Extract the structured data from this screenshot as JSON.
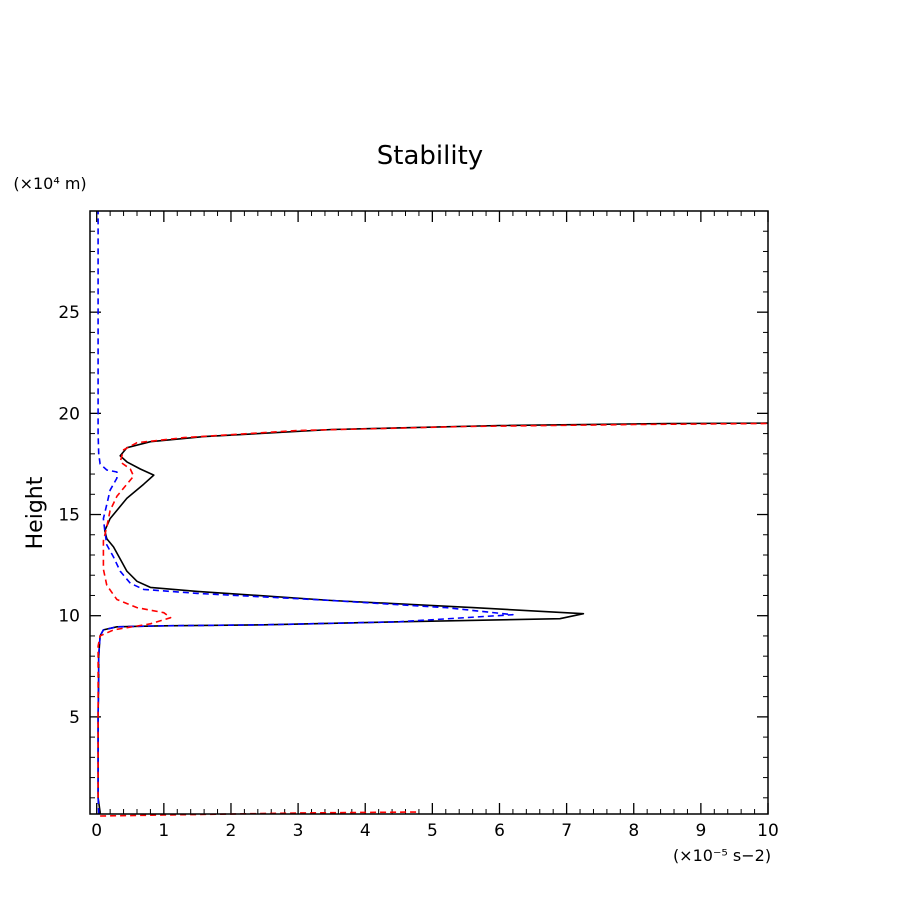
{
  "chart_data": {
    "type": "line",
    "title": "Stability",
    "xlabel": "(×10⁻⁵ s−2)",
    "ylabel": "Height",
    "y_unit_label": "(×10⁴ m)",
    "xlim": [
      -0.1,
      10
    ],
    "ylim": [
      0.2,
      30
    ],
    "x_major_ticks": [
      0,
      1,
      2,
      3,
      4,
      5,
      6,
      7,
      8,
      9,
      10
    ],
    "y_major_ticks": [
      5,
      10,
      15,
      20,
      25
    ],
    "grid": false,
    "legend": "none",
    "series": [
      {
        "color": "#000000",
        "dash": "solid",
        "points": [
          [
            0.05,
            0.2
          ],
          [
            0.05,
            0.3
          ],
          [
            0.02,
            1
          ],
          [
            0.02,
            3
          ],
          [
            0.02,
            5
          ],
          [
            0.03,
            7
          ],
          [
            0.03,
            8
          ],
          [
            0.05,
            9
          ],
          [
            0.1,
            9.3
          ],
          [
            0.3,
            9.45
          ],
          [
            1.0,
            9.5
          ],
          [
            2.5,
            9.55
          ],
          [
            4.5,
            9.7
          ],
          [
            6.9,
            9.85
          ],
          [
            7.25,
            10.1
          ],
          [
            5.6,
            10.4
          ],
          [
            3.5,
            10.75
          ],
          [
            1.5,
            11.2
          ],
          [
            0.8,
            11.4
          ],
          [
            0.6,
            11.7
          ],
          [
            0.45,
            12.2
          ],
          [
            0.35,
            12.8
          ],
          [
            0.25,
            13.4
          ],
          [
            0.15,
            13.8
          ],
          [
            0.12,
            14.2
          ],
          [
            0.2,
            14.8
          ],
          [
            0.35,
            15.4
          ],
          [
            0.45,
            15.8
          ],
          [
            0.7,
            16.5
          ],
          [
            0.85,
            16.95
          ],
          [
            0.65,
            17.25
          ],
          [
            0.45,
            17.6
          ],
          [
            0.35,
            17.9
          ],
          [
            0.45,
            18.3
          ],
          [
            0.8,
            18.6
          ],
          [
            1.6,
            18.85
          ],
          [
            3.5,
            19.2
          ],
          [
            6.0,
            19.4
          ],
          [
            8.5,
            19.5
          ],
          [
            10,
            19.52
          ]
        ]
      },
      {
        "color": "#0000ff",
        "dash": "dashed",
        "points": [
          [
            0.03,
            0.2
          ],
          [
            0.03,
            0.3
          ],
          [
            0.02,
            1
          ],
          [
            0.02,
            3
          ],
          [
            0.02,
            5
          ],
          [
            0.03,
            7
          ],
          [
            0.03,
            8
          ],
          [
            0.05,
            9
          ],
          [
            0.1,
            9.3
          ],
          [
            0.3,
            9.45
          ],
          [
            1.0,
            9.5
          ],
          [
            2.5,
            9.55
          ],
          [
            4.5,
            9.7
          ],
          [
            6.2,
            10.05
          ],
          [
            5.2,
            10.4
          ],
          [
            3.5,
            10.75
          ],
          [
            1.5,
            11.1
          ],
          [
            0.7,
            11.3
          ],
          [
            0.5,
            11.6
          ],
          [
            0.35,
            12.2
          ],
          [
            0.25,
            12.9
          ],
          [
            0.15,
            13.5
          ],
          [
            0.12,
            14.2
          ],
          [
            0.1,
            14.8
          ],
          [
            0.15,
            15.5
          ],
          [
            0.2,
            16.2
          ],
          [
            0.3,
            16.8
          ],
          [
            0.3,
            17.1
          ],
          [
            0.15,
            17.2
          ],
          [
            0.05,
            17.5
          ],
          [
            0.03,
            18
          ],
          [
            0.02,
            19
          ],
          [
            0.02,
            22
          ],
          [
            0.02,
            25
          ],
          [
            0.02,
            30
          ]
        ]
      },
      {
        "color": "#ff0000",
        "dash": "dashed",
        "points": [
          [
            0.05,
            0.1
          ],
          [
            1.0,
            0.15
          ],
          [
            3.0,
            0.25
          ],
          [
            4.8,
            0.3
          ]
        ]
      },
      {
        "color": "#ff0000",
        "dash": "dashed",
        "points": [
          [
            0.02,
            1
          ],
          [
            0.02,
            3
          ],
          [
            0.02,
            5
          ],
          [
            0.02,
            7
          ],
          [
            0.02,
            8.5
          ],
          [
            0.05,
            9.0
          ],
          [
            0.25,
            9.3
          ],
          [
            0.8,
            9.6
          ],
          [
            1.1,
            9.9
          ],
          [
            1.0,
            10.15
          ],
          [
            0.6,
            10.4
          ],
          [
            0.3,
            10.8
          ],
          [
            0.15,
            11.5
          ],
          [
            0.1,
            12.3
          ],
          [
            0.1,
            13.0
          ],
          [
            0.1,
            13.7
          ],
          [
            0.15,
            14.4
          ],
          [
            0.2,
            15.2
          ],
          [
            0.3,
            15.9
          ],
          [
            0.45,
            16.5
          ],
          [
            0.55,
            16.9
          ],
          [
            0.5,
            17.25
          ],
          [
            0.35,
            17.6
          ],
          [
            0.4,
            18.2
          ],
          [
            0.6,
            18.55
          ],
          [
            1.3,
            18.8
          ],
          [
            3.0,
            19.15
          ],
          [
            5.5,
            19.35
          ],
          [
            8.0,
            19.45
          ],
          [
            10,
            19.5
          ]
        ]
      }
    ]
  }
}
